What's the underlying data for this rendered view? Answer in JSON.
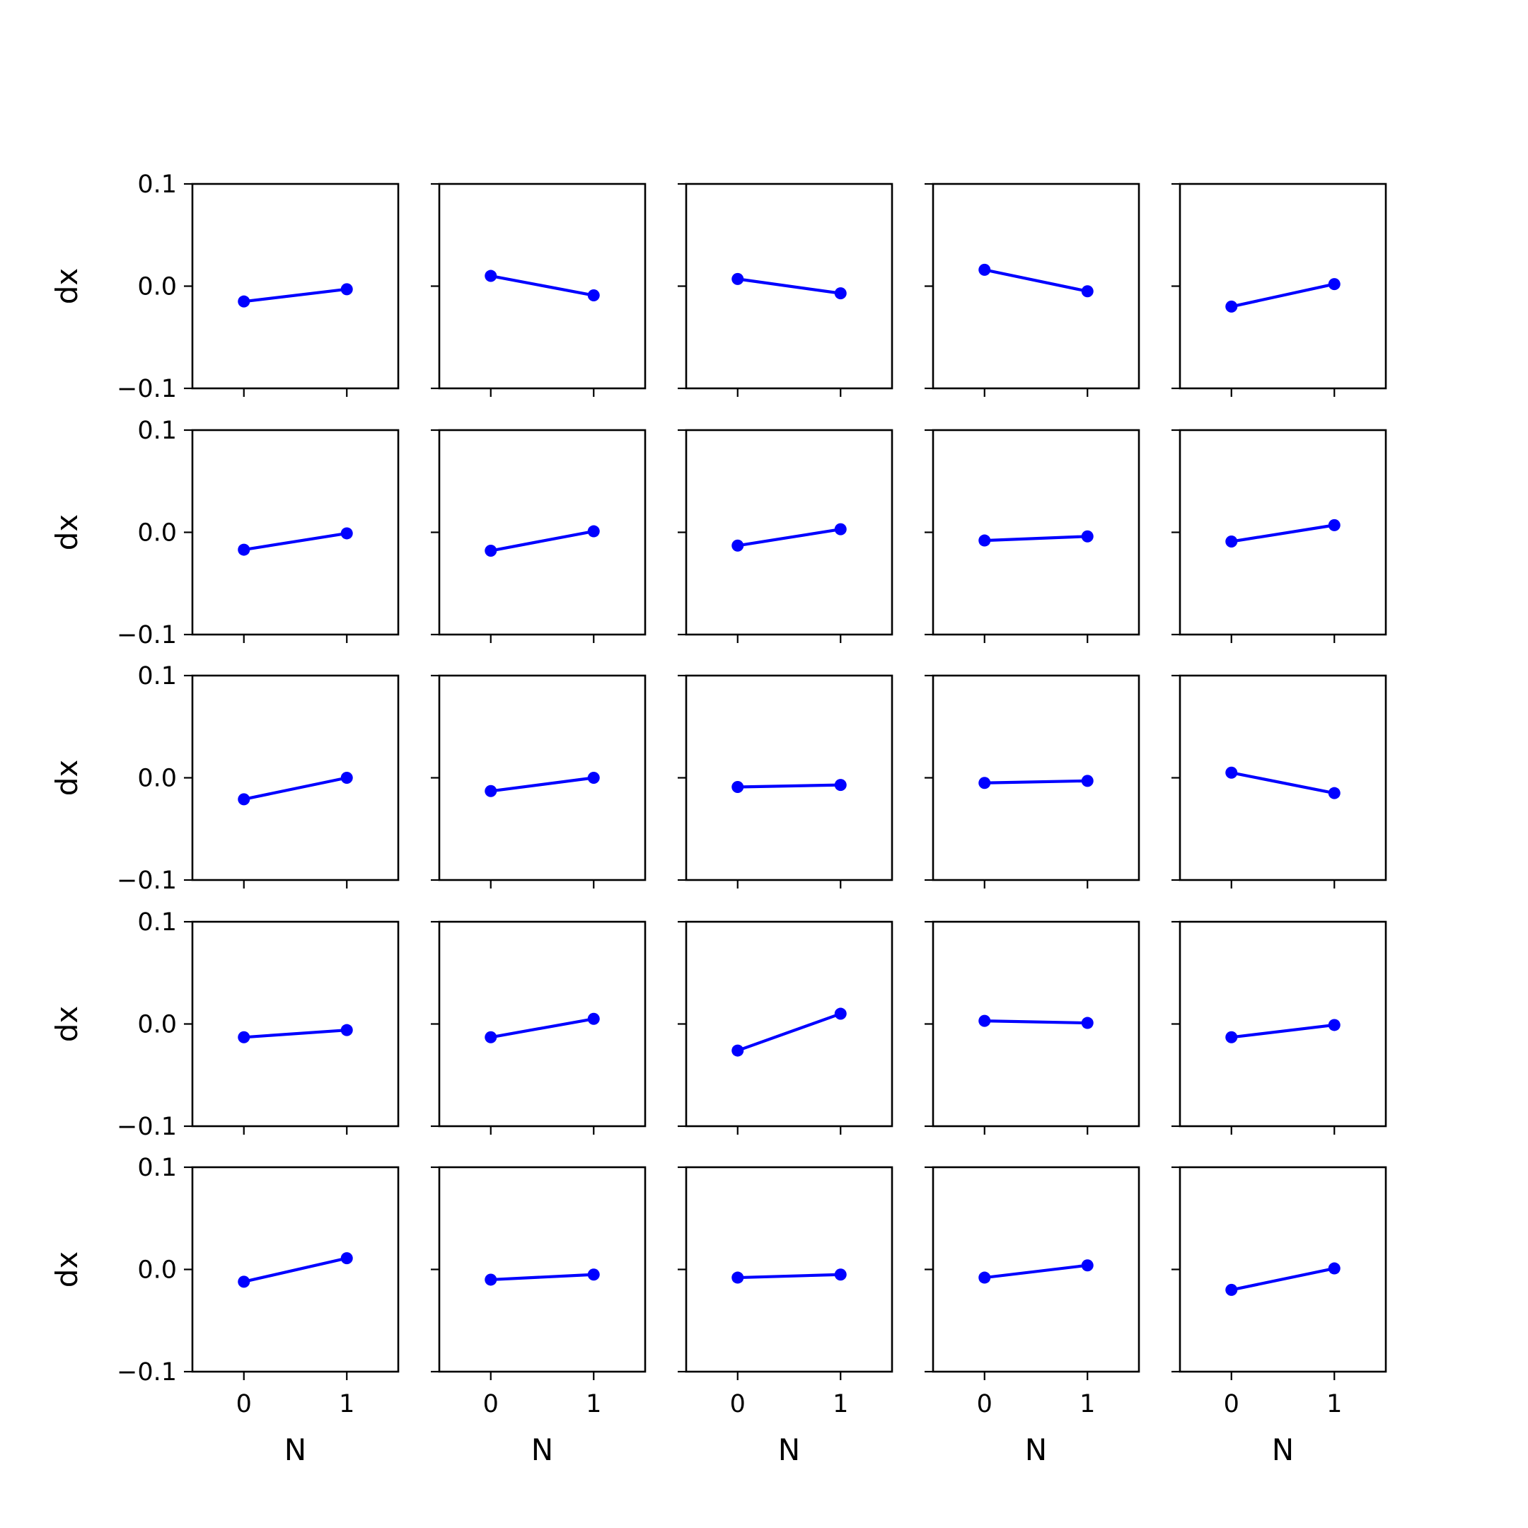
{
  "chart_data": {
    "type": "line",
    "layout": "5x5 small multiples",
    "xlabel": "N",
    "ylabel": "dx",
    "x": [
      0,
      1
    ],
    "xticks": [
      "0",
      "1"
    ],
    "xlim": [
      -0.5,
      1.5
    ],
    "ylim": [
      -0.1,
      0.1
    ],
    "yticks": [
      "0.1",
      "0.0",
      "−0.1"
    ],
    "line_color": "#0000ff",
    "marker": "circle",
    "grid": false,
    "subplots": [
      {
        "row": 1,
        "col": 1,
        "values": [
          -0.015,
          -0.003
        ]
      },
      {
        "row": 1,
        "col": 2,
        "values": [
          0.01,
          -0.009
        ]
      },
      {
        "row": 1,
        "col": 3,
        "values": [
          0.007,
          -0.007
        ]
      },
      {
        "row": 1,
        "col": 4,
        "values": [
          0.016,
          -0.005
        ]
      },
      {
        "row": 1,
        "col": 5,
        "values": [
          -0.02,
          0.002
        ]
      },
      {
        "row": 2,
        "col": 1,
        "values": [
          -0.017,
          -0.001
        ]
      },
      {
        "row": 2,
        "col": 2,
        "values": [
          -0.018,
          0.001
        ]
      },
      {
        "row": 2,
        "col": 3,
        "values": [
          -0.013,
          0.003
        ]
      },
      {
        "row": 2,
        "col": 4,
        "values": [
          -0.008,
          -0.004
        ]
      },
      {
        "row": 2,
        "col": 5,
        "values": [
          -0.009,
          0.007
        ]
      },
      {
        "row": 3,
        "col": 1,
        "values": [
          -0.021,
          0.0
        ]
      },
      {
        "row": 3,
        "col": 2,
        "values": [
          -0.013,
          0.0
        ]
      },
      {
        "row": 3,
        "col": 3,
        "values": [
          -0.009,
          -0.007
        ]
      },
      {
        "row": 3,
        "col": 4,
        "values": [
          -0.005,
          -0.003
        ]
      },
      {
        "row": 3,
        "col": 5,
        "values": [
          0.005,
          -0.015
        ]
      },
      {
        "row": 4,
        "col": 1,
        "values": [
          -0.013,
          -0.006
        ]
      },
      {
        "row": 4,
        "col": 2,
        "values": [
          -0.013,
          0.005
        ]
      },
      {
        "row": 4,
        "col": 3,
        "values": [
          -0.026,
          0.01
        ]
      },
      {
        "row": 4,
        "col": 4,
        "values": [
          0.003,
          0.001
        ]
      },
      {
        "row": 4,
        "col": 5,
        "values": [
          -0.013,
          -0.001
        ]
      },
      {
        "row": 5,
        "col": 1,
        "values": [
          -0.012,
          0.011
        ]
      },
      {
        "row": 5,
        "col": 2,
        "values": [
          -0.01,
          -0.005
        ]
      },
      {
        "row": 5,
        "col": 3,
        "values": [
          -0.008,
          -0.005
        ]
      },
      {
        "row": 5,
        "col": 4,
        "values": [
          -0.008,
          0.004
        ]
      },
      {
        "row": 5,
        "col": 5,
        "values": [
          -0.02,
          0.001
        ]
      }
    ]
  }
}
